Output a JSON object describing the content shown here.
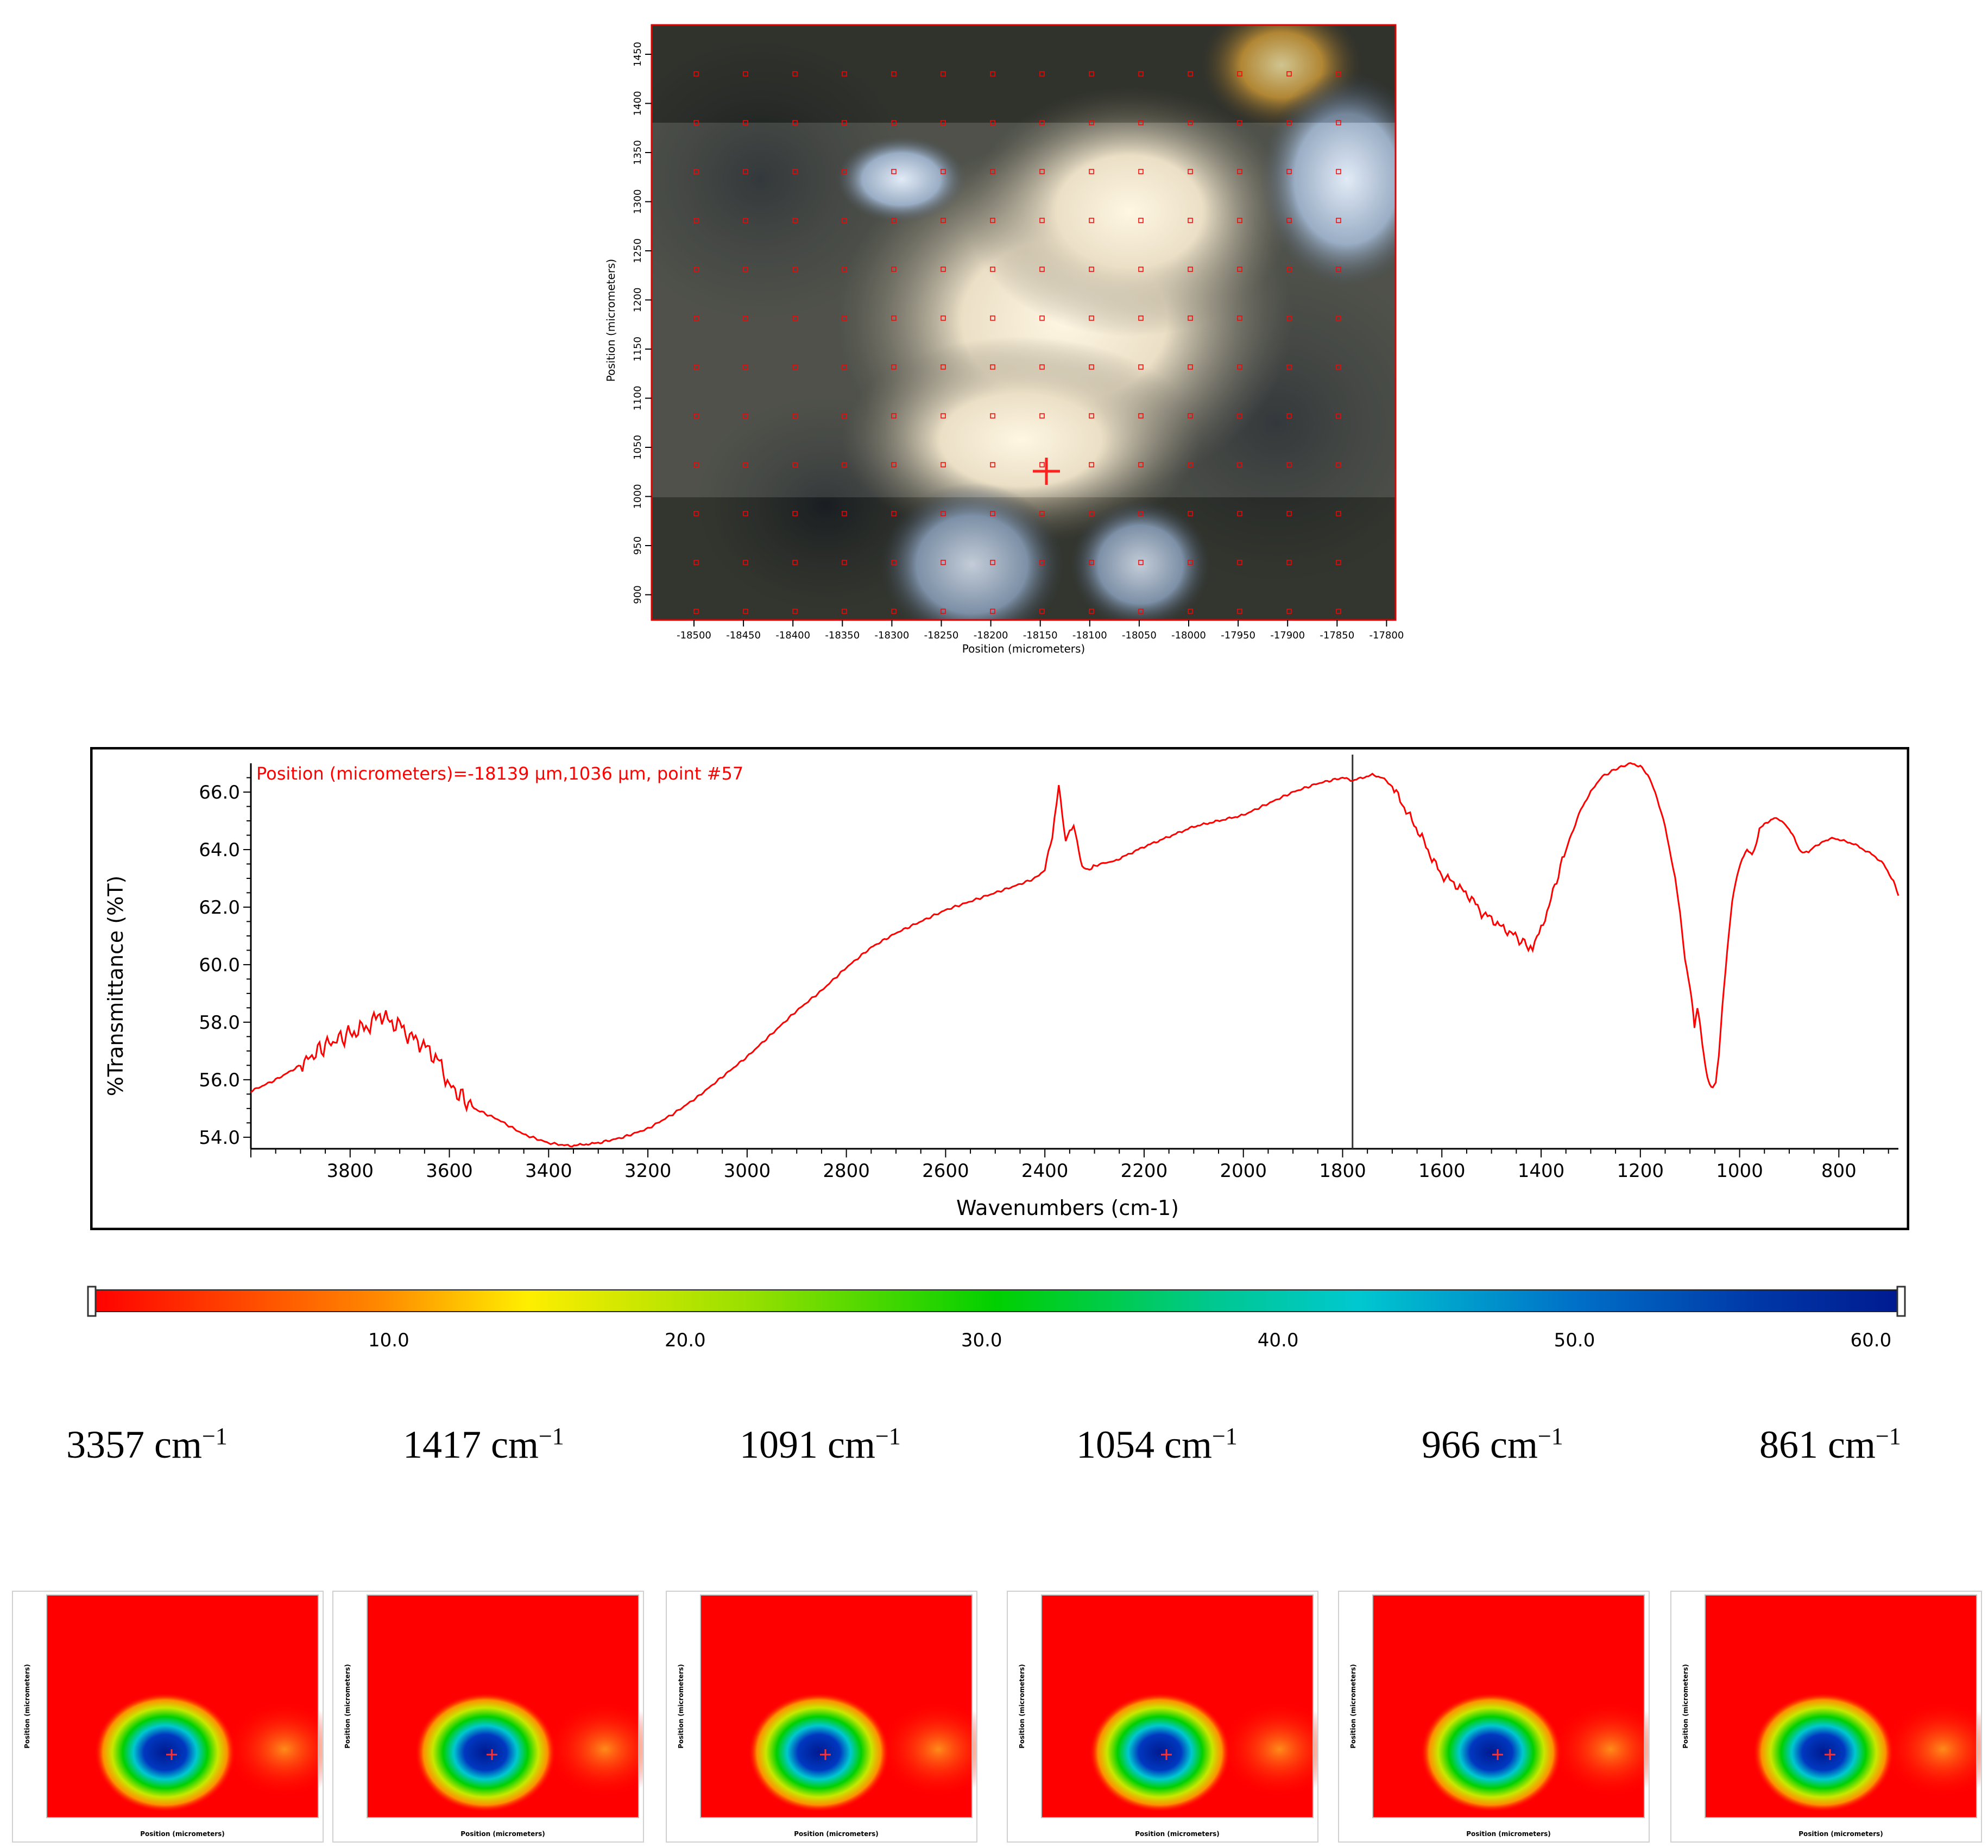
{
  "micrograph": {
    "xlabel": "Position (micrometers)",
    "ylabel": "Position (micrometers)",
    "xticks": [
      "-18500",
      "-18450",
      "-18400",
      "-18350",
      "-18300",
      "-18250",
      "-18200",
      "-18150",
      "-18100",
      "-18050",
      "-18000",
      "-17950",
      "-17900",
      "-17850",
      "-17800"
    ],
    "yticks": [
      "1450",
      "1400",
      "1350",
      "1300",
      "1250",
      "1200",
      "1150",
      "1100",
      "1050",
      "1000",
      "950",
      "900"
    ],
    "marker_color": "#ff0000",
    "selected_point": {
      "x": -18139,
      "y": 1036
    }
  },
  "chart_data": {
    "type": "line",
    "title": "",
    "annotation": "Position (micrometers)=-18139 µm,1036 µm, point #57",
    "xlabel": "Wavenumbers (cm-1)",
    "ylabel": "%Transmittance (%T)",
    "xlim": [
      4000,
      680
    ],
    "ylim": [
      53.6,
      67.0
    ],
    "x_reversed": true,
    "xticks": [
      "3800",
      "3600",
      "3400",
      "3200",
      "3000",
      "2800",
      "2600",
      "2400",
      "2200",
      "2000",
      "1800",
      "1600",
      "1400",
      "1200",
      "1000",
      "800"
    ],
    "yticks": [
      "54.0",
      "56.0",
      "58.0",
      "60.0",
      "62.0",
      "64.0",
      "66.0"
    ],
    "cursor_x": 1780,
    "line_color": "#ff0000",
    "series": [
      {
        "x": [
          4000,
          3950,
          3900,
          3850,
          3800,
          3760,
          3740,
          3720,
          3700,
          3680,
          3660,
          3640,
          3620,
          3600,
          3550,
          3500,
          3450,
          3400,
          3357,
          3300,
          3250,
          3200,
          3150,
          3100,
          3050,
          3000,
          2950,
          2900,
          2850,
          2800,
          2750,
          2700,
          2650,
          2600,
          2550,
          2500,
          2450,
          2420,
          2400,
          2385,
          2372,
          2365,
          2358,
          2350,
          2342,
          2335,
          2325,
          2310,
          2290,
          2260,
          2200,
          2100,
          2000,
          1950,
          1900,
          1850,
          1800,
          1780,
          1760,
          1740,
          1720,
          1700,
          1680,
          1660,
          1640,
          1620,
          1600,
          1580,
          1560,
          1540,
          1520,
          1500,
          1480,
          1460,
          1440,
          1430,
          1417,
          1400,
          1380,
          1350,
          1320,
          1300,
          1280,
          1250,
          1220,
          1200,
          1185,
          1170,
          1150,
          1130,
          1120,
          1110,
          1100,
          1095,
          1091,
          1085,
          1080,
          1075,
          1070,
          1065,
          1060,
          1054,
          1048,
          1042,
          1035,
          1025,
          1015,
          1005,
          995,
          985,
          975,
          966,
          960,
          950,
          940,
          930,
          915,
          900,
          890,
          880,
          870,
          861,
          850,
          840,
          830,
          810,
          790,
          770,
          750,
          730,
          710,
          690,
          680
        ],
        "y": [
          55.6,
          56.0,
          56.5,
          57.2,
          57.6,
          57.9,
          58.3,
          58.0,
          57.9,
          57.5,
          57.3,
          57.0,
          56.6,
          55.8,
          55.0,
          54.6,
          54.1,
          53.8,
          53.7,
          53.8,
          54.0,
          54.3,
          54.8,
          55.4,
          56.1,
          56.8,
          57.6,
          58.4,
          59.1,
          59.9,
          60.6,
          61.1,
          61.5,
          61.9,
          62.2,
          62.5,
          62.8,
          63.0,
          63.3,
          64.5,
          66.2,
          65.2,
          64.3,
          64.6,
          64.9,
          64.2,
          63.4,
          63.3,
          63.5,
          63.6,
          64.1,
          64.8,
          65.2,
          65.6,
          66.0,
          66.3,
          66.5,
          66.4,
          66.5,
          66.6,
          66.5,
          66.2,
          65.6,
          65.0,
          64.4,
          63.7,
          63.1,
          62.9,
          62.6,
          62.3,
          61.8,
          61.6,
          61.3,
          61.1,
          60.8,
          60.7,
          60.6,
          61.2,
          62.3,
          64.0,
          65.4,
          66.0,
          66.5,
          66.8,
          67.0,
          66.9,
          66.6,
          66.0,
          64.8,
          63.0,
          61.8,
          60.2,
          59.2,
          58.6,
          57.8,
          58.5,
          58.0,
          57.2,
          56.6,
          56.1,
          55.8,
          55.7,
          55.9,
          56.8,
          58.5,
          60.5,
          62.2,
          63.1,
          63.7,
          64.0,
          63.8,
          64.2,
          64.7,
          64.9,
          65.0,
          65.1,
          65.0,
          64.7,
          64.4,
          64.0,
          63.9,
          63.9,
          64.1,
          64.2,
          64.3,
          64.4,
          64.3,
          64.2,
          64.0,
          63.8,
          63.5,
          62.9,
          62.4
        ]
      }
    ]
  },
  "colorbar": {
    "ticks": [
      "10.0",
      "20.0",
      "30.0",
      "40.0",
      "50.0",
      "60.0"
    ],
    "min": 0,
    "max": 61
  },
  "maps": [
    {
      "label_num": "3357",
      "unit": "cm",
      "sup": "−1"
    },
    {
      "label_num": "1417",
      "unit": "cm",
      "sup": "−1"
    },
    {
      "label_num": "1091",
      "unit": "cm",
      "sup": "−1"
    },
    {
      "label_num": "1054",
      "unit": "cm",
      "sup": "−1"
    },
    {
      "label_num": "966",
      "unit": "cm",
      "sup": "−1"
    },
    {
      "label_num": "861",
      "unit": "cm",
      "sup": "−1"
    }
  ],
  "map_axis": {
    "xlabel": "Position (micrometers)",
    "ylabel": "Position (micrometers)"
  }
}
